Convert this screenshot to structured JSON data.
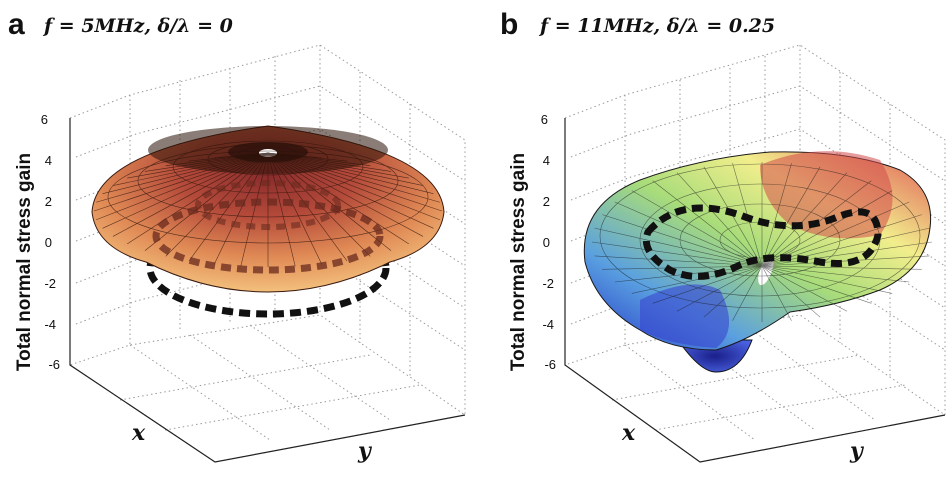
{
  "chart_data": [
    {
      "type": "surface",
      "panel": "a",
      "title": "f = 5MHz, δ/λ = 0",
      "zlabel": "Total normal stress gain",
      "xlabel": "x",
      "ylabel": "y",
      "zlim": [
        -6,
        6
      ],
      "zticks": [
        "6",
        "4",
        "2",
        "0",
        "-2",
        "-4",
        "-6"
      ],
      "grid": true,
      "surface": {
        "shape": "shallow dome",
        "rim_z": 0.2,
        "peak_z": 4.6,
        "center_hole": true,
        "colormap": "copper"
      },
      "dashed_curve": {
        "shape": "ring",
        "z": -2.8
      }
    },
    {
      "type": "surface",
      "panel": "b",
      "title": "f = 11MHz, δ/λ = 0.25",
      "zlabel": "Total normal stress gain",
      "xlabel": "x",
      "ylabel": "y",
      "zlim": [
        -6,
        6
      ],
      "zticks": [
        "6",
        "4",
        "2",
        "0",
        "-2",
        "-4",
        "-6"
      ],
      "grid": true,
      "surface": {
        "shape": "tilted saddle",
        "max_z": 4.0,
        "min_z": -5.8,
        "center_hole": true,
        "colormap": "jet (muted)"
      },
      "dashed_curve": {
        "shape": "figure-eight",
        "z_range": [
          -2,
          2
        ]
      }
    }
  ],
  "colors": {
    "copper_dark": "#5a2a1a",
    "copper_mid": "#b04e3a",
    "copper_light": "#f0b87a",
    "blue": "#3a4fd0",
    "green": "#9ad46a",
    "yellow": "#f0ec8a",
    "red": "#d94a4a",
    "dash": "#111111"
  }
}
